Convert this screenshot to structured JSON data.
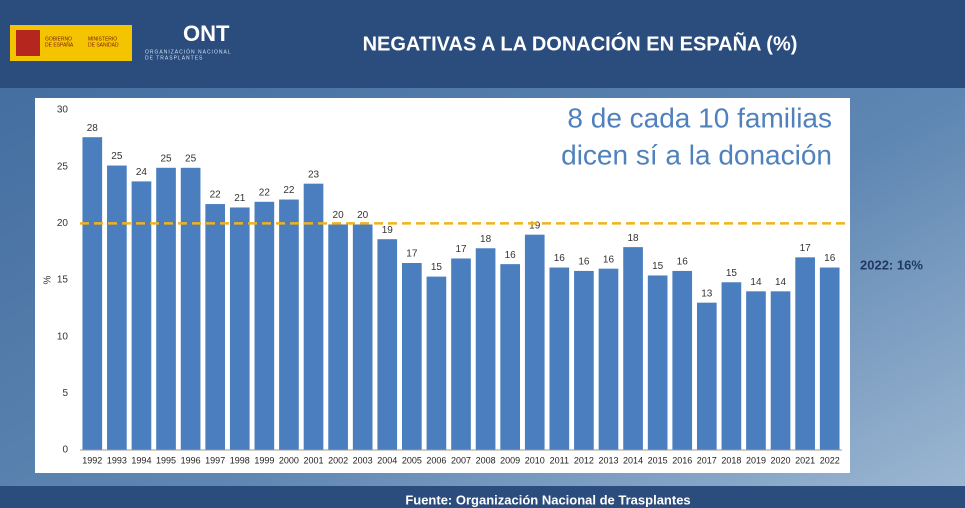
{
  "header": {
    "title": "NEGATIVAS A LA DONACIÓN EN ESPAÑA (%)",
    "logo_gov": [
      "GOBIERNO",
      "DE ESPAÑA"
    ],
    "logo_ministry": [
      "MINISTERIO",
      "DE SANIDAD"
    ],
    "logo_ont": "ONT",
    "logo_ont_sub": [
      "ORGANIZACIÓN NACIONAL",
      "DE TRASPLANTES"
    ]
  },
  "footer": "Fuente: Organización Nacional de Trasplantes",
  "chart_data": {
    "type": "bar",
    "ylabel": "%",
    "categories": [
      "1992",
      "1993",
      "1994",
      "1995",
      "1996",
      "1997",
      "1998",
      "1999",
      "2000",
      "2001",
      "2002",
      "2003",
      "2004",
      "2005",
      "2006",
      "2007",
      "2008",
      "2009",
      "2010",
      "2011",
      "2012",
      "2013",
      "2014",
      "2015",
      "2016",
      "2017",
      "2018",
      "2019",
      "2020",
      "2021",
      "2022"
    ],
    "values": [
      27.6,
      25.1,
      23.7,
      24.9,
      24.9,
      21.7,
      21.4,
      21.9,
      22.1,
      23.5,
      19.9,
      19.9,
      18.6,
      16.5,
      15.3,
      16.9,
      17.8,
      16.4,
      19.0,
      16.1,
      15.8,
      16.0,
      17.9,
      15.4,
      15.8,
      13.0,
      14.8,
      14.0,
      14.0,
      17.0,
      16.1
    ],
    "value_labels": [
      "28",
      "25",
      "24",
      "25",
      "25",
      "22",
      "21",
      "22",
      "22",
      "23",
      "20",
      "20",
      "19",
      "17",
      "15",
      "17",
      "18",
      "16",
      "19",
      "16",
      "16",
      "16",
      "18",
      "15",
      "16",
      "13",
      "15",
      "14",
      "14",
      "17",
      "16"
    ],
    "color": "#4a7ebf",
    "ylim": [
      0,
      30
    ],
    "yticks": [
      0,
      5,
      10,
      15,
      20,
      25,
      30
    ],
    "grid": false,
    "reference_line": {
      "value": 20,
      "color": "#f2b21a"
    },
    "annotations": [
      "8 de cada 10 familias",
      "dicen sí a la donación"
    ],
    "side_note": "2022:  16%"
  }
}
